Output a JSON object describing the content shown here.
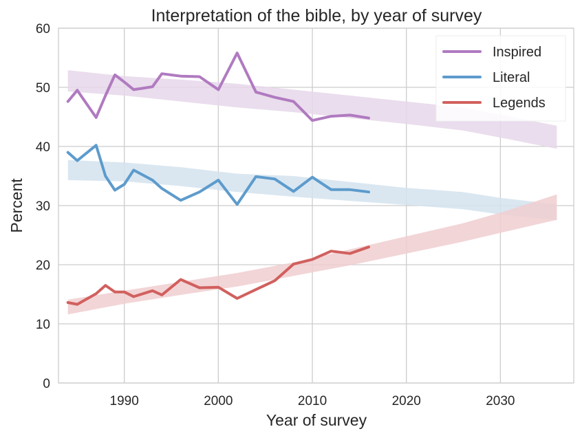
{
  "chart_data": {
    "type": "line",
    "title": "Interpretation of the bible, by year of survey",
    "xlabel": "Year of survey",
    "ylabel": "Percent",
    "xlim": [
      1983,
      2037.8
    ],
    "ylim": [
      0,
      60
    ],
    "xticks": [
      1990,
      2000,
      2010,
      2020,
      2030
    ],
    "yticks": [
      0,
      10,
      20,
      30,
      40,
      50,
      60
    ],
    "grid": true,
    "legend_position": "top-right",
    "x": [
      1984,
      1985,
      1987,
      1988,
      1989,
      1990,
      1991,
      1993,
      1994,
      1996,
      1998,
      2000,
      2002,
      2004,
      2006,
      2008,
      2010,
      2012,
      2014,
      2016
    ],
    "series": [
      {
        "name": "Inspired",
        "color": "#b07ac0",
        "band_color": "#e6d7ea",
        "values": [
          47.6,
          49.5,
          44.9,
          48.6,
          52.1,
          50.9,
          49.6,
          50.1,
          52.3,
          51.9,
          51.8,
          49.6,
          55.8,
          49.2,
          48.3,
          47.6,
          44.4,
          45.1,
          45.3,
          44.8
        ],
        "prediction_band": {
          "x": [
            1984,
            1990,
            1996,
            2002,
            2008,
            2014,
            2020,
            2026,
            2030,
            2036
          ],
          "upper": [
            52.9,
            51.9,
            51.3,
            50.6,
            49.6,
            48.6,
            47.6,
            46.6,
            45.4,
            43.5
          ],
          "lower": [
            49.3,
            48.6,
            47.6,
            46.6,
            45.8,
            44.8,
            43.8,
            42.7,
            41.5,
            39.6
          ]
        }
      },
      {
        "name": "Literal",
        "color": "#5d9bcc",
        "band_color": "#d4e3ef",
        "values": [
          39.0,
          37.6,
          40.2,
          35.0,
          32.6,
          33.6,
          36.0,
          34.3,
          32.9,
          30.9,
          32.3,
          34.3,
          30.2,
          34.9,
          34.5,
          32.4,
          34.8,
          32.7,
          32.7,
          32.3
        ],
        "prediction_band": {
          "x": [
            1984,
            1990,
            1996,
            2002,
            2008,
            2014,
            2020,
            2026,
            2030,
            2036
          ],
          "upper": [
            37.7,
            37.3,
            36.5,
            35.4,
            35.0,
            34.0,
            33.0,
            32.3,
            31.3,
            30.2
          ],
          "lower": [
            34.3,
            34.1,
            33.3,
            32.3,
            31.5,
            30.8,
            30.1,
            29.4,
            28.5,
            27.5
          ]
        }
      },
      {
        "name": "Legends",
        "color": "#d1605e",
        "band_color": "#f0ced0",
        "values": [
          13.6,
          13.3,
          15.1,
          16.5,
          15.4,
          15.4,
          14.6,
          15.6,
          14.9,
          17.5,
          16.1,
          16.2,
          14.3,
          15.8,
          17.3,
          20.1,
          20.9,
          22.3,
          21.9,
          23.0
        ],
        "prediction_band": {
          "x": [
            1984,
            1990,
            1996,
            2002,
            2008,
            2014,
            2020,
            2026,
            2030,
            2036
          ],
          "upper": [
            14.1,
            15.6,
            17.1,
            18.6,
            20.4,
            22.6,
            24.8,
            27.0,
            28.8,
            31.9
          ],
          "lower": [
            11.6,
            13.4,
            14.9,
            16.3,
            18.1,
            19.9,
            21.9,
            23.9,
            25.4,
            27.6
          ]
        }
      }
    ]
  }
}
